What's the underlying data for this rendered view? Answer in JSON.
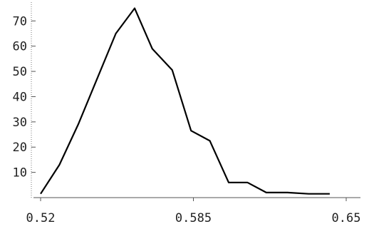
{
  "chart_data": {
    "type": "line",
    "title": "",
    "xlabel": "",
    "ylabel": "",
    "xlim": [
      0.52,
      0.65
    ],
    "ylim": [
      0,
      78
    ],
    "grid": false,
    "x_ticks": [
      {
        "value": 0.52,
        "label": "0.52"
      },
      {
        "value": 0.585,
        "label": "0.585"
      },
      {
        "value": 0.65,
        "label": "0.65"
      }
    ],
    "y_ticks": [
      {
        "value": 10,
        "label": "10"
      },
      {
        "value": 20,
        "label": "20"
      },
      {
        "value": 30,
        "label": "30"
      },
      {
        "value": 40,
        "label": "40"
      },
      {
        "value": 50,
        "label": "50"
      },
      {
        "value": 60,
        "label": "60"
      },
      {
        "value": 70,
        "label": "70"
      }
    ],
    "series": [
      {
        "color": "#000000",
        "x": [
          0.52,
          0.528,
          0.536,
          0.544,
          0.552,
          0.56,
          0.5675,
          0.576,
          0.584,
          0.592,
          0.6,
          0.608,
          0.616,
          0.625,
          0.634,
          0.643
        ],
        "y": [
          1.5,
          13,
          29,
          47,
          65,
          75,
          59,
          50.5,
          26.5,
          22.5,
          6,
          6,
          2,
          2,
          1.5,
          1.5
        ]
      }
    ]
  }
}
